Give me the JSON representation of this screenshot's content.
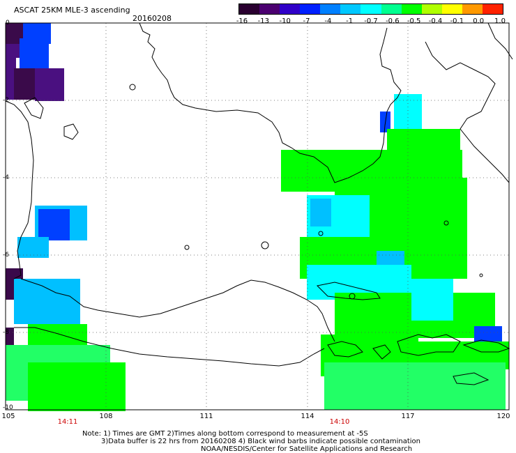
{
  "header": {
    "title": "ASCAT 25KM MLE-3 ascending",
    "date": "20160208"
  },
  "colorbar": {
    "labels": [
      "-16",
      "-13",
      "-10",
      "-7",
      "-4",
      "-1",
      "-0.7",
      "-0.6",
      "-0.5",
      "-0.4",
      "-0.1",
      "0.0",
      "1.0"
    ],
    "colors": [
      "#2a0030",
      "#4b0070",
      "#3000c8",
      "#0020ff",
      "#0080ff",
      "#00c8ff",
      "#00ffff",
      "#00ff90",
      "#00ff00",
      "#b0ff00",
      "#ffff00",
      "#ff9900",
      "#ff2200"
    ]
  },
  "axes": {
    "x_ticks": [
      "105",
      "108",
      "111",
      "114",
      "117",
      "120"
    ],
    "y_ticks": [
      "0",
      "-2",
      "-4",
      "-6",
      "-8",
      "-10"
    ]
  },
  "swath_times": [
    "14:11",
    "14:10"
  ],
  "notes": {
    "line1": "Note: 1) Times are GMT 2)Times along bottom correspond to measurement at -5S",
    "line2": "3)Data buffer is 22 hrs from 20160208 4) Black wind barbs indicate possible contamination",
    "line3": "NOAA/NESDIS/Center for Satellite Applications and Research"
  },
  "colors": {
    "green": "#00ff00",
    "light_green": "#22ff66",
    "cyan": "#00ffff",
    "light_blue": "#00c0ff",
    "blue": "#0040ff",
    "dark_purple": "#3a0a4a",
    "purple": "#4a1080"
  }
}
